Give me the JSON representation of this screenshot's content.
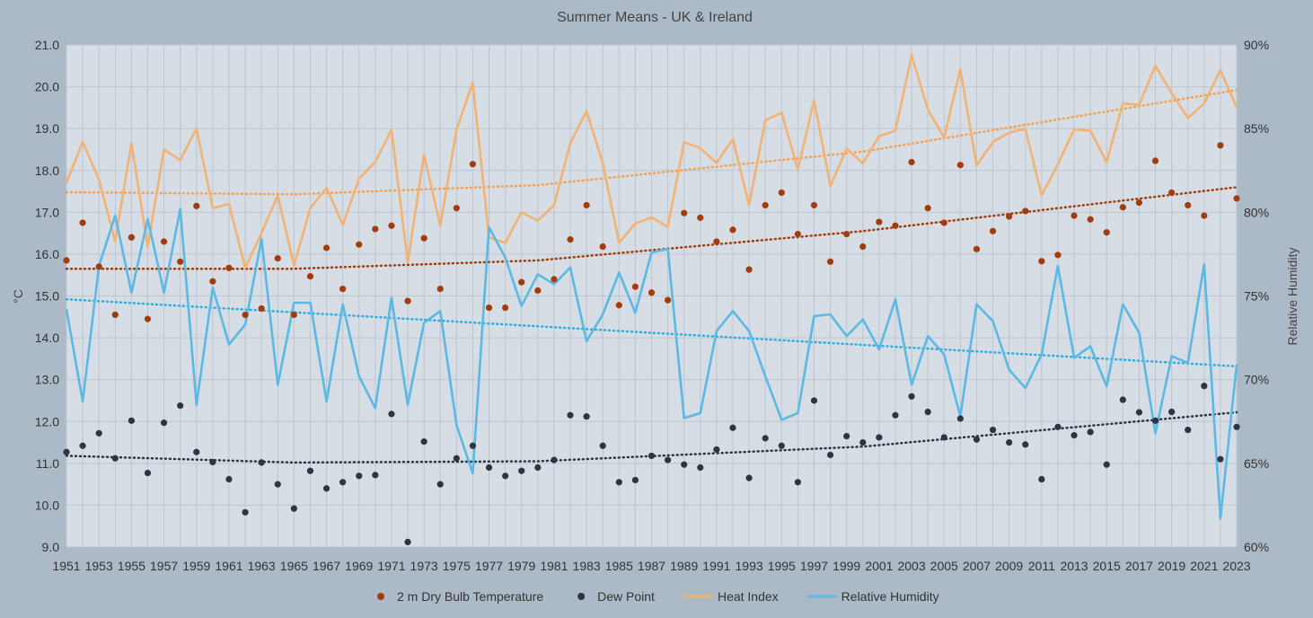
{
  "chart_data": {
    "type": "line",
    "title": "Summer Means - UK & Ireland",
    "ylabel": "°C",
    "y2label": "Relative Humidity",
    "ylim": [
      9,
      21
    ],
    "y2lim": [
      60,
      90
    ],
    "yticks": [
      "9.0",
      "10.0",
      "11.0",
      "12.0",
      "13.0",
      "14.0",
      "15.0",
      "16.0",
      "17.0",
      "18.0",
      "19.0",
      "20.0",
      "21.0"
    ],
    "y2ticks": [
      "60%",
      "65%",
      "70%",
      "75%",
      "80%",
      "85%",
      "90%"
    ],
    "grid": true,
    "legend_position": "bottom",
    "x": [
      1951,
      1952,
      1953,
      1954,
      1955,
      1956,
      1957,
      1958,
      1959,
      1960,
      1961,
      1962,
      1963,
      1964,
      1965,
      1966,
      1967,
      1968,
      1969,
      1970,
      1971,
      1972,
      1973,
      1974,
      1975,
      1976,
      1977,
      1978,
      1979,
      1980,
      1981,
      1982,
      1983,
      1984,
      1985,
      1986,
      1987,
      1988,
      1989,
      1990,
      1991,
      1992,
      1993,
      1994,
      1995,
      1996,
      1997,
      1998,
      1999,
      2000,
      2001,
      2002,
      2003,
      2004,
      2005,
      2006,
      2007,
      2008,
      2009,
      2010,
      2011,
      2012,
      2013,
      2014,
      2015,
      2016,
      2017,
      2018,
      2019,
      2020,
      2021,
      2022,
      2023
    ],
    "series": [
      {
        "name": "2 m Dry Bulb Temperature",
        "kind": "scatter",
        "axis": "left",
        "color": "#a33c0c",
        "values": [
          15.85,
          16.75,
          15.7,
          14.55,
          16.4,
          14.45,
          16.3,
          15.82,
          17.15,
          15.35,
          15.67,
          14.55,
          14.7,
          15.9,
          14.55,
          15.47,
          16.15,
          15.17,
          16.23,
          16.6,
          16.68,
          14.88,
          16.38,
          15.17,
          17.1,
          18.15,
          14.72,
          14.72,
          15.33,
          15.13,
          15.4,
          16.35,
          17.17,
          16.18,
          14.78,
          15.22,
          15.08,
          14.9,
          16.98,
          16.87,
          16.3,
          16.58,
          15.63,
          17.17,
          17.47,
          16.48,
          17.17,
          15.82,
          16.48,
          16.18,
          16.77,
          16.68,
          18.2,
          17.1,
          16.75,
          18.13,
          16.12,
          16.55,
          16.9,
          17.03,
          15.83,
          15.98,
          16.92,
          16.83,
          16.52,
          17.12,
          17.23,
          18.23,
          17.47,
          17.17,
          16.92,
          18.6,
          17.33
        ]
      },
      {
        "name": "Dew Point",
        "kind": "scatter",
        "axis": "left",
        "color": "#2c3540",
        "values": [
          11.27,
          11.42,
          11.72,
          11.12,
          12.02,
          10.77,
          11.97,
          12.38,
          11.27,
          11.03,
          10.62,
          9.83,
          11.02,
          10.5,
          9.92,
          10.82,
          10.4,
          10.55,
          10.7,
          10.72,
          12.18,
          9.12,
          11.52,
          10.5,
          11.12,
          11.42,
          10.9,
          10.7,
          10.82,
          10.9,
          11.08,
          12.15,
          12.12,
          11.42,
          10.55,
          10.6,
          11.18,
          11.08,
          10.97,
          10.9,
          11.33,
          11.85,
          10.65,
          11.6,
          11.42,
          10.55,
          12.5,
          11.2,
          11.65,
          11.5,
          11.62,
          12.15,
          12.6,
          12.23,
          11.62,
          12.07,
          11.57,
          11.8,
          11.5,
          11.45,
          10.62,
          11.87,
          11.67,
          11.75,
          10.97,
          12.52,
          12.22,
          12.02,
          12.23,
          11.8,
          12.85,
          11.1,
          11.87
        ]
      },
      {
        "name": "Heat Index",
        "kind": "line",
        "axis": "left",
        "color": "#f2b273",
        "values": [
          17.7,
          18.68,
          17.78,
          16.3,
          18.65,
          16.17,
          18.5,
          18.25,
          19.0,
          17.1,
          17.2,
          15.67,
          16.5,
          17.4,
          15.73,
          17.1,
          17.58,
          16.7,
          17.8,
          18.2,
          18.97,
          15.8,
          18.37,
          16.68,
          18.97,
          20.1,
          16.4,
          16.27,
          17.0,
          16.8,
          17.17,
          18.65,
          19.42,
          18.17,
          16.27,
          16.73,
          16.88,
          16.65,
          18.68,
          18.53,
          18.18,
          18.75,
          17.17,
          19.2,
          19.38,
          18.02,
          19.68,
          17.63,
          18.52,
          18.17,
          18.82,
          18.95,
          20.75,
          19.45,
          18.78,
          20.42,
          18.12,
          18.68,
          18.9,
          19.0,
          17.4,
          18.15,
          18.98,
          18.95,
          18.2,
          19.6,
          19.57,
          20.5,
          19.85,
          19.25,
          19.6,
          20.4,
          19.5
        ]
      },
      {
        "name": "Relative Humidity",
        "kind": "line",
        "axis": "right",
        "color": "#5bb9e3",
        "values": [
          74.2,
          68.7,
          76.8,
          79.8,
          75.2,
          79.6,
          75.2,
          80.2,
          68.5,
          75.5,
          72.1,
          73.3,
          78.4,
          69.7,
          74.6,
          74.6,
          68.7,
          74.5,
          70.2,
          68.3,
          74.9,
          68.5,
          73.4,
          74.1,
          67.3,
          64.4,
          79.1,
          77.3,
          74.4,
          76.3,
          75.7,
          76.7,
          72.3,
          73.9,
          76.4,
          74.0,
          77.6,
          77.8,
          67.7,
          68.0,
          72.9,
          74.1,
          72.9,
          70.2,
          67.6,
          68.0,
          73.8,
          73.9,
          72.6,
          73.6,
          71.8,
          74.8,
          69.7,
          72.6,
          71.5,
          67.8,
          74.5,
          73.5,
          70.6,
          69.5,
          71.5,
          76.8,
          71.3,
          72.0,
          69.6,
          74.5,
          72.8,
          66.8,
          71.4,
          71.0,
          76.9,
          61.7,
          70.9
        ]
      }
    ],
    "trendlines": [
      {
        "of": "2 m Dry Bulb Temperature",
        "axis": "left",
        "color": "#a33c0c",
        "points": [
          [
            1951,
            15.65
          ],
          [
            1965,
            15.65
          ],
          [
            1980,
            15.85
          ],
          [
            2000,
            16.55
          ],
          [
            2023,
            17.6
          ]
        ]
      },
      {
        "of": "Dew Point",
        "axis": "left",
        "color": "#2c3540",
        "points": [
          [
            1951,
            11.18
          ],
          [
            1965,
            11.02
          ],
          [
            1980,
            11.05
          ],
          [
            2000,
            11.4
          ],
          [
            2023,
            12.22
          ]
        ]
      },
      {
        "of": "Heat Index",
        "axis": "left",
        "color": "#f5a04c",
        "points": [
          [
            1951,
            17.48
          ],
          [
            1965,
            17.43
          ],
          [
            1980,
            17.65
          ],
          [
            2000,
            18.45
          ],
          [
            2023,
            19.92
          ]
        ]
      },
      {
        "of": "Relative Humidity",
        "axis": "right",
        "color": "#2aaee0",
        "points": [
          [
            1951,
            74.8
          ],
          [
            2023,
            70.8
          ]
        ]
      }
    ]
  }
}
